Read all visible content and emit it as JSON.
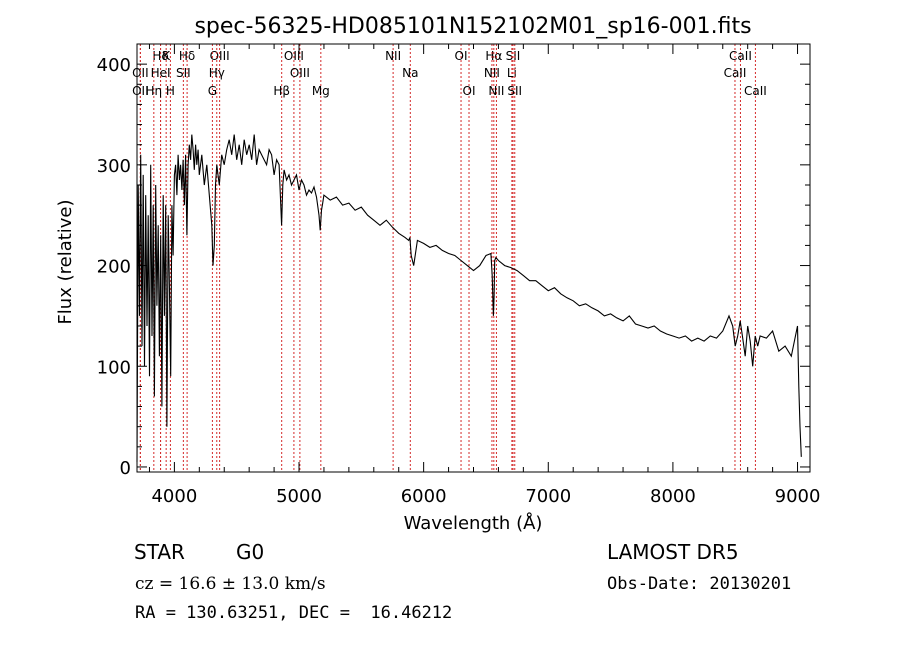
{
  "chart_data": {
    "type": "line",
    "title": "spec-56325-HD085101N152102M01_sp16-001.fits",
    "xlabel": "Wavelength (Å)",
    "ylabel": "Flux (relative)",
    "xlim": [
      3700,
      9100
    ],
    "ylim": [
      -5,
      420
    ],
    "xticks": [
      4000,
      5000,
      6000,
      7000,
      8000,
      9000
    ],
    "yticks": [
      0,
      100,
      200,
      300,
      400
    ],
    "grid": false,
    "series": [
      {
        "x": [
          3700,
          3710,
          3720,
          3730,
          3740,
          3750,
          3760,
          3770,
          3780,
          3790,
          3800,
          3810,
          3820,
          3830,
          3840,
          3850,
          3860,
          3870,
          3880,
          3890,
          3900,
          3910,
          3920,
          3930,
          3940,
          3950,
          3960,
          3970,
          3980,
          3990,
          4000,
          4010,
          4020,
          4030,
          4040,
          4050,
          4060,
          4070,
          4080,
          4090,
          4100,
          4110,
          4120,
          4130,
          4140,
          4150,
          4160,
          4170,
          4180,
          4190,
          4200,
          4220,
          4240,
          4260,
          4280,
          4300,
          4310,
          4320,
          4330,
          4340,
          4350,
          4360,
          4380,
          4400,
          4420,
          4440,
          4460,
          4480,
          4500,
          4520,
          4540,
          4560,
          4580,
          4600,
          4620,
          4640,
          4660,
          4680,
          4700,
          4720,
          4740,
          4760,
          4780,
          4800,
          4820,
          4840,
          4860,
          4870,
          4880,
          4900,
          4920,
          4940,
          4960,
          4980,
          5000,
          5020,
          5040,
          5060,
          5080,
          5100,
          5120,
          5140,
          5160,
          5170,
          5180,
          5190,
          5200,
          5250,
          5300,
          5350,
          5400,
          5450,
          5500,
          5550,
          5600,
          5650,
          5700,
          5750,
          5800,
          5850,
          5880,
          5890,
          5900,
          5920,
          5950,
          6000,
          6050,
          6100,
          6150,
          6200,
          6250,
          6300,
          6350,
          6400,
          6450,
          6500,
          6540,
          6550,
          6560,
          6565,
          6570,
          6580,
          6600,
          6650,
          6700,
          6750,
          6800,
          6850,
          6900,
          6950,
          7000,
          7050,
          7100,
          7150,
          7200,
          7250,
          7300,
          7350,
          7400,
          7450,
          7500,
          7550,
          7600,
          7650,
          7700,
          7750,
          7800,
          7850,
          7900,
          7950,
          8000,
          8050,
          8100,
          8150,
          8200,
          8250,
          8300,
          8350,
          8400,
          8450,
          8480,
          8500,
          8520,
          8540,
          8560,
          8580,
          8600,
          8620,
          8640,
          8660,
          8680,
          8700,
          8750,
          8800,
          8850,
          8900,
          8950,
          9000,
          9010,
          9020,
          9030
        ],
        "values": [
          5,
          280,
          150,
          310,
          120,
          290,
          100,
          270,
          140,
          250,
          90,
          300,
          130,
          260,
          70,
          280,
          160,
          240,
          110,
          230,
          60,
          270,
          150,
          260,
          40,
          250,
          180,
          90,
          260,
          210,
          290,
          300,
          270,
          310,
          285,
          300,
          275,
          305,
          260,
          310,
          230,
          300,
          320,
          305,
          330,
          315,
          295,
          320,
          300,
          315,
          290,
          310,
          280,
          300,
          270,
          240,
          200,
          220,
          280,
          300,
          290,
          280,
          310,
          300,
          315,
          325,
          310,
          330,
          305,
          320,
          300,
          325,
          310,
          320,
          305,
          330,
          300,
          315,
          310,
          305,
          300,
          315,
          310,
          290,
          305,
          300,
          240,
          280,
          295,
          285,
          290,
          280,
          285,
          290,
          275,
          285,
          280,
          270,
          275,
          272,
          278,
          268,
          250,
          235,
          255,
          262,
          270,
          265,
          268,
          260,
          262,
          255,
          258,
          250,
          245,
          240,
          245,
          238,
          232,
          228,
          225,
          228,
          210,
          200,
          225,
          222,
          218,
          220,
          215,
          212,
          210,
          205,
          200,
          195,
          200,
          210,
          212,
          190,
          150,
          170,
          205,
          208,
          205,
          200,
          198,
          195,
          190,
          185,
          185,
          180,
          175,
          178,
          172,
          168,
          165,
          160,
          162,
          158,
          155,
          150,
          152,
          148,
          145,
          150,
          142,
          140,
          138,
          140,
          135,
          132,
          130,
          128,
          130,
          125,
          128,
          125,
          130,
          128,
          135,
          150,
          140,
          120,
          130,
          145,
          128,
          110,
          140,
          125,
          100,
          130,
          120,
          130,
          128,
          135,
          115,
          120,
          110,
          140,
          80,
          40,
          10
        ]
      }
    ],
    "line_markers": [
      {
        "label": "Hδ",
        "wl": 3889,
        "row": 0
      },
      {
        "label": "K",
        "wl": 3934,
        "row": 0
      },
      {
        "label": "Hδ",
        "wl": 4102,
        "row": 0
      },
      {
        "label": "OIII",
        "wl": 4363,
        "row": 0
      },
      {
        "label": "OIII",
        "wl": 4959,
        "row": 0
      },
      {
        "label": "NII",
        "wl": 5755,
        "row": 0
      },
      {
        "label": "OI",
        "wl": 6300,
        "row": 0
      },
      {
        "label": "Hα",
        "wl": 6563,
        "row": 0
      },
      {
        "label": "SII",
        "wl": 6717,
        "row": 0
      },
      {
        "label": "CaII",
        "wl": 8542,
        "row": 0
      },
      {
        "label": "OII",
        "wl": 3727,
        "row": 1
      },
      {
        "label": "HeI",
        "wl": 3889,
        "row": 1
      },
      {
        "label": "SII",
        "wl": 4072,
        "row": 1
      },
      {
        "label": "Hγ",
        "wl": 4340,
        "row": 1
      },
      {
        "label": "OIII",
        "wl": 5007,
        "row": 1
      },
      {
        "label": "Na",
        "wl": 5893,
        "row": 1
      },
      {
        "label": "NII",
        "wl": 6548,
        "row": 1
      },
      {
        "label": "Li",
        "wl": 6708,
        "row": 1
      },
      {
        "label": "CaII",
        "wl": 8498,
        "row": 1
      },
      {
        "label": "OII",
        "wl": 3727,
        "row": 2
      },
      {
        "label": "Hη",
        "wl": 3835,
        "row": 2
      },
      {
        "label": "H",
        "wl": 3968,
        "row": 2
      },
      {
        "label": "G",
        "wl": 4305,
        "row": 2
      },
      {
        "label": "Hβ",
        "wl": 4861,
        "row": 2
      },
      {
        "label": "Mg",
        "wl": 5175,
        "row": 2
      },
      {
        "label": "OI",
        "wl": 6364,
        "row": 2
      },
      {
        "label": "NII",
        "wl": 6584,
        "row": 2
      },
      {
        "label": "SII",
        "wl": 6731,
        "row": 2
      },
      {
        "label": "CaII",
        "wl": 8662,
        "row": 2
      }
    ]
  },
  "info": {
    "class": "STAR",
    "subclass": "G0",
    "release": "LAMOST DR5",
    "cz": "cz = 16.6 ± 13.0 km/s",
    "obs_date": "Obs-Date: 20130201",
    "coords": "RA = 130.63251, DEC =  16.46212"
  },
  "colors": {
    "marker": "#d42a2a",
    "ink": "#000000"
  }
}
